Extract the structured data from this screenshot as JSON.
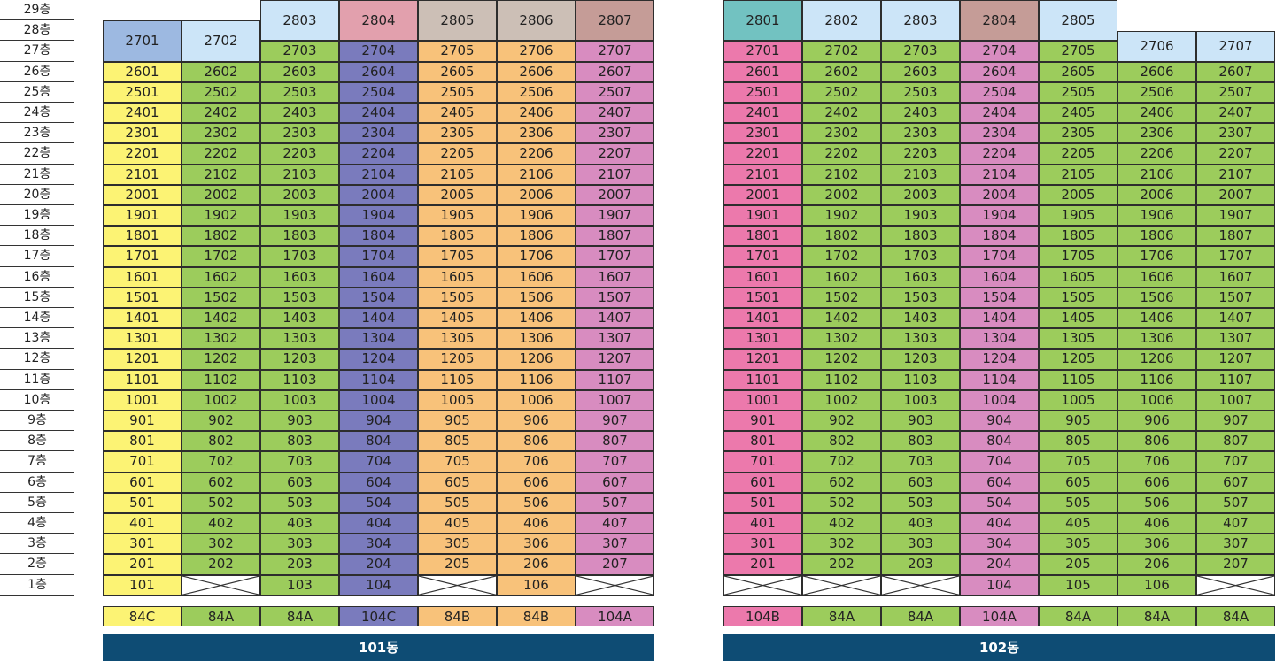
{
  "floors": [
    "29층",
    "28층",
    "27층",
    "26층",
    "25층",
    "24층",
    "23층",
    "22층",
    "21층",
    "20층",
    "19층",
    "18층",
    "17층",
    "16층",
    "15층",
    "14층",
    "13층",
    "12층",
    "11층",
    "10층",
    "9층",
    "8층",
    "7층",
    "6층",
    "5층",
    "4층",
    "3층",
    "2층",
    "1층"
  ],
  "colors": {
    "yellow": "#fcf374",
    "green": "#9ccc5c",
    "purple": "#7a7bbd",
    "orange": "#f8c27a",
    "pink_mauve": "#d88cc0",
    "pink": "#ec79ac",
    "light_blue": "#cce5f8",
    "blue": "#9db9e1",
    "rose": "#e2a0ad",
    "taupe": "#ccbfb6",
    "brown_rose": "#c59c97",
    "teal": "#72c2c1",
    "empty_bg": "#ffffff",
    "label_bar": "#0e4c74"
  },
  "buildings": [
    {
      "name": "101동",
      "types": [
        "84C",
        "84A",
        "84A",
        "104C",
        "84B",
        "84B",
        "104A"
      ],
      "type_colors": [
        "yellow",
        "green",
        "green",
        "purple",
        "orange",
        "orange",
        "pink_mauve"
      ],
      "column_colors": [
        "yellow",
        "green",
        "green",
        "purple",
        "orange",
        "orange",
        "pink_mauve"
      ],
      "ground_floor": [
        "101",
        null,
        "103",
        "104",
        null,
        "106",
        null
      ],
      "top_units": [
        {
          "col": 0,
          "label": "2701",
          "color": "blue",
          "span": "27-28"
        },
        {
          "col": 1,
          "label": "2702",
          "color": "light_blue",
          "span": "27-28"
        },
        {
          "col": 2,
          "label": "2803",
          "color": "light_blue",
          "span": "28-29"
        },
        {
          "col": 3,
          "label": "2804",
          "color": "rose",
          "span": "28-29"
        },
        {
          "col": 4,
          "label": "2805",
          "color": "taupe",
          "span": "28-29"
        },
        {
          "col": 5,
          "label": "2806",
          "color": "taupe",
          "span": "28-29"
        },
        {
          "col": 6,
          "label": "2807",
          "color": "brown_rose",
          "span": "28-29"
        }
      ],
      "floor27_cols": [
        2,
        3,
        4,
        5,
        6
      ],
      "top_regular_floor": 26
    },
    {
      "name": "102동",
      "types": [
        "104B",
        "84A",
        "84A",
        "104A",
        "84A",
        "84A",
        "84A"
      ],
      "type_colors": [
        "pink",
        "green",
        "green",
        "pink_mauve",
        "green",
        "green",
        "green"
      ],
      "column_colors": [
        "pink",
        "green",
        "green",
        "pink_mauve",
        "green",
        "green",
        "green"
      ],
      "ground_floor": [
        null,
        null,
        null,
        "104",
        "105",
        "106",
        null
      ],
      "ground_colors": [
        null,
        null,
        null,
        "pink_mauve",
        "green",
        "green",
        null
      ],
      "top_units": [
        {
          "col": 0,
          "label": "2801",
          "color": "teal",
          "span": "28-29"
        },
        {
          "col": 1,
          "label": "2802",
          "color": "light_blue",
          "span": "28-29"
        },
        {
          "col": 2,
          "label": "2803",
          "color": "light_blue",
          "span": "28-29"
        },
        {
          "col": 3,
          "label": "2804",
          "color": "brown_rose",
          "span": "28-29"
        },
        {
          "col": 4,
          "label": "2805",
          "color": "light_blue",
          "span": "28-29"
        },
        {
          "col": 5,
          "label": "2706",
          "color": "light_blue",
          "span": "26.5-28.5"
        },
        {
          "col": 6,
          "label": "2707",
          "color": "light_blue",
          "span": "26.5-28.5"
        }
      ],
      "floor27_cols": [
        0,
        1,
        2,
        3,
        4
      ],
      "top_regular_floor": 26
    }
  ]
}
